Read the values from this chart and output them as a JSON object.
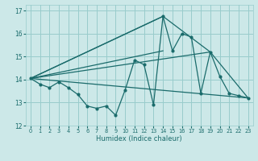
{
  "title": "",
  "xlabel": "Humidex (Indice chaleur)",
  "ylabel": "",
  "background_color": "#cce8e8",
  "grid_color": "#99cccc",
  "line_color": "#1a6b6b",
  "xlim": [
    -0.5,
    23.5
  ],
  "ylim": [
    12,
    17.25
  ],
  "yticks": [
    12,
    13,
    14,
    15,
    16,
    17
  ],
  "xticks": [
    0,
    1,
    2,
    3,
    4,
    5,
    6,
    7,
    8,
    9,
    10,
    11,
    12,
    13,
    14,
    15,
    16,
    17,
    18,
    19,
    20,
    21,
    22,
    23
  ],
  "lines": [
    {
      "x": [
        0,
        1,
        2,
        3,
        4,
        5,
        6,
        7,
        8,
        9,
        10,
        11,
        12,
        13,
        14,
        15,
        16,
        17,
        18,
        19,
        20,
        21,
        22,
        23
      ],
      "y": [
        14.05,
        13.8,
        13.65,
        13.9,
        13.65,
        13.35,
        12.85,
        12.75,
        12.85,
        12.45,
        13.55,
        14.85,
        14.65,
        12.9,
        16.75,
        15.25,
        16.0,
        15.85,
        13.4,
        15.2,
        14.15,
        13.4,
        13.3,
        13.2
      ]
    },
    {
      "x": [
        0,
        14,
        19,
        23
      ],
      "y": [
        14.05,
        16.75,
        15.2,
        13.2
      ]
    },
    {
      "x": [
        0,
        14,
        19,
        23
      ],
      "y": [
        14.05,
        16.75,
        15.2,
        13.2
      ]
    },
    {
      "x": [
        0,
        23
      ],
      "y": [
        14.05,
        13.2
      ]
    },
    {
      "x": [
        0,
        19
      ],
      "y": [
        14.05,
        15.2
      ]
    }
  ]
}
